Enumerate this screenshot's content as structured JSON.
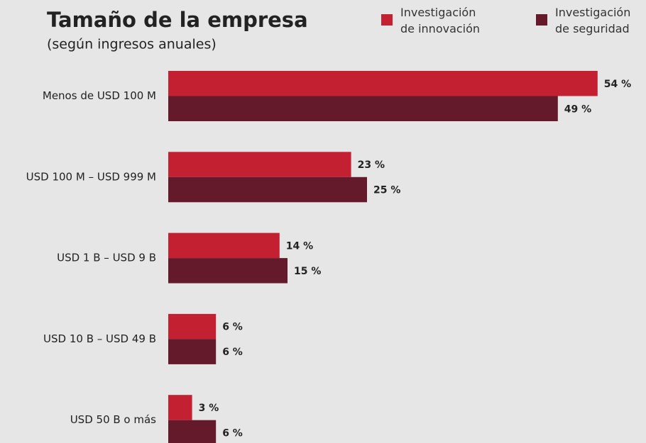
{
  "chart_data": {
    "type": "bar",
    "orientation": "horizontal",
    "title": "Tamaño de la empresa",
    "subtitle": "(según ingresos anuales)",
    "categories": [
      "Menos de USD 100 M",
      "USD 100 M – USD 999 M",
      "USD 1 B – USD 9 B",
      "USD 10 B – USD 49 B",
      "USD 50 B o más"
    ],
    "series": [
      {
        "name": "Investigación de innovación",
        "color": "#c32032",
        "values": [
          54,
          23,
          14,
          6,
          3
        ],
        "value_labels": [
          "54 %",
          "23 %",
          "14 %",
          "6 %",
          "3 %"
        ]
      },
      {
        "name": "Investigación de seguridad",
        "color": "#641a2b",
        "values": [
          49,
          25,
          15,
          6,
          6
        ],
        "value_labels": [
          "49 %",
          "25 %",
          "15 %",
          "6 %",
          "6 %"
        ]
      }
    ],
    "legend": "top-right"
  }
}
